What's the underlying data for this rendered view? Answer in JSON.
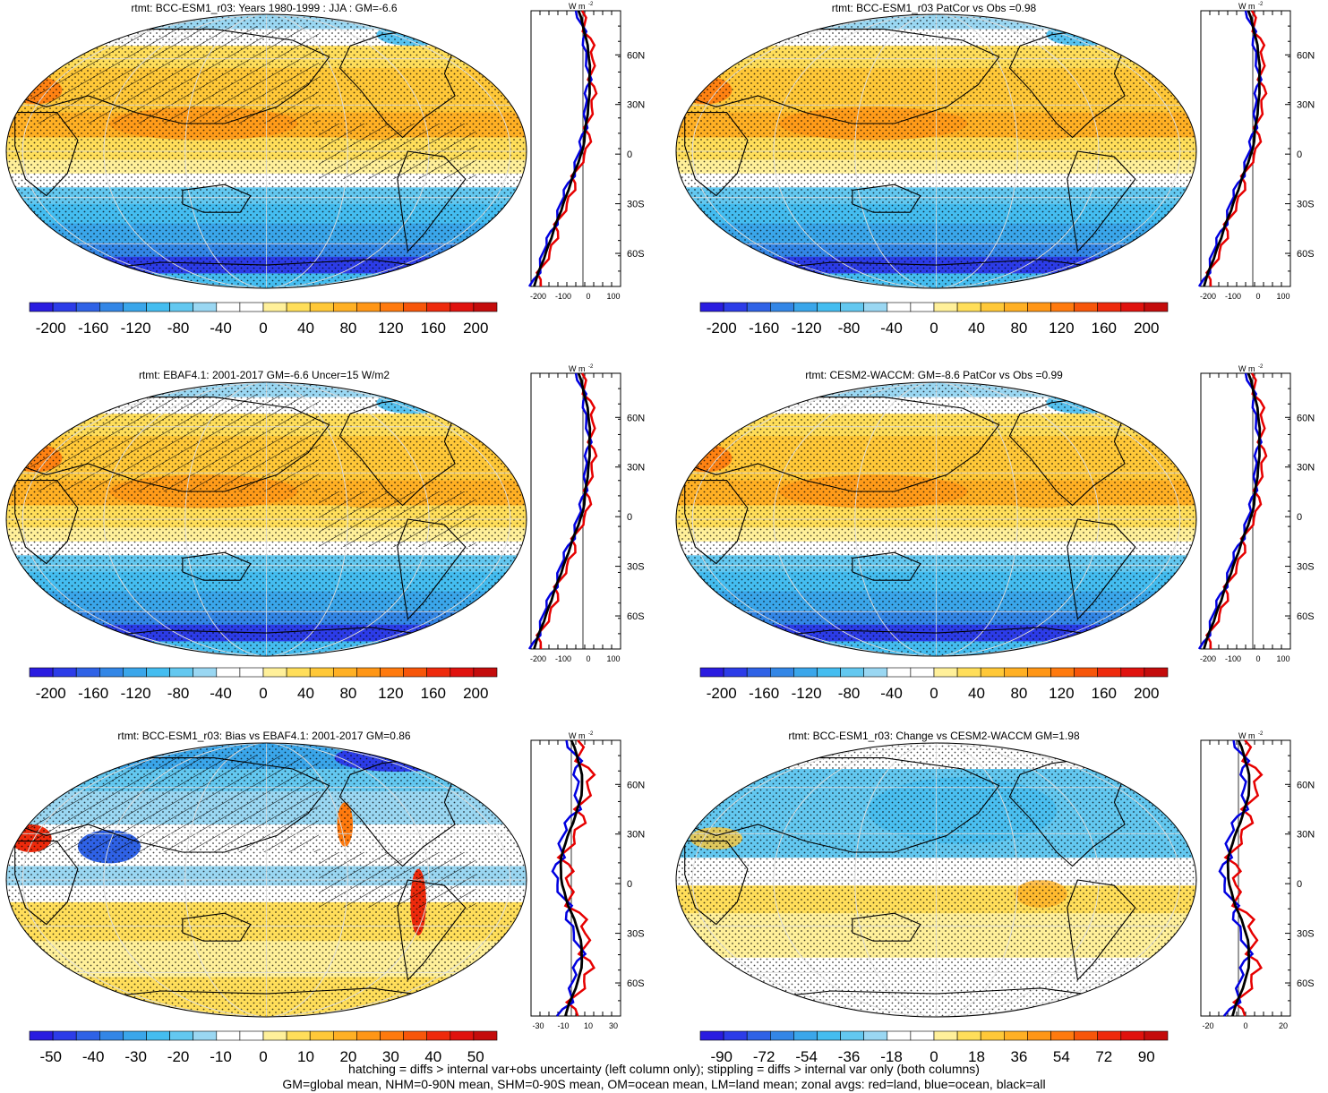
{
  "panels": [
    {
      "title": "rtmt: BCC-ESM1_r03: Years 1980-1999 : JJA : GM=-6.6",
      "type": "mean",
      "hatch": true
    },
    {
      "title": "rtmt: BCC-ESM1_r03 PatCor vs Obs =0.98",
      "type": "mean",
      "hatch": false
    },
    {
      "title": "rtmt: EBAF4.1: 2001-2017 GM=-6.6 Uncer=15 W/m2",
      "type": "mean",
      "hatch": true
    },
    {
      "title": "rtmt: CESM2-WACCM: GM=-8.6 PatCor vs Obs =0.99",
      "type": "mean",
      "hatch": false
    },
    {
      "title": "rtmt: BCC-ESM1_r03: Bias vs EBAF4.1: 2001-2017 GM=0.86",
      "type": "bias",
      "hatch": true
    },
    {
      "title": "rtmt: BCC-ESM1_r03: Change vs CESM2-WACCM GM=1.98",
      "type": "change",
      "hatch": false
    }
  ],
  "colorbars": {
    "mean": [
      "-200",
      "-160",
      "-120",
      "-80",
      "-40",
      "0",
      "40",
      "80",
      "120",
      "160",
      "200"
    ],
    "bias": [
      "-50",
      "-40",
      "-30",
      "-20",
      "-10",
      "0",
      "10",
      "20",
      "30",
      "40",
      "50"
    ],
    "change": [
      "-90",
      "-72",
      "-54",
      "-36",
      "-18",
      "0",
      "18",
      "36",
      "54",
      "72",
      "90"
    ]
  },
  "zonal_axes": {
    "unit_label": "W m",
    "unit_exp": "-2",
    "lat_labels": [
      "60N",
      "30N",
      "0",
      "30S",
      "60S"
    ],
    "x_mean": [
      "-200",
      "-100",
      "0",
      "100"
    ],
    "x_bias": [
      "-30",
      "-10",
      "10",
      "30"
    ],
    "x_change": [
      "-20",
      "0",
      "20"
    ]
  },
  "footnote": {
    "line1": "hatching = diffs > internal var+obs uncertainty (left column only); stippling = diffs > internal var only (both columns)",
    "line2": "GM=global mean, NHM=0-90N mean, SHM=0-90S mean, OM=ocean mean, LM=land mean; zonal avgs: red=land, blue=ocean, black=all"
  },
  "colors": {
    "palette": [
      "#2a1ce0",
      "#2c3ce8",
      "#2f62e6",
      "#3386e6",
      "#3aa6ea",
      "#44bdf0",
      "#63c8f0",
      "#9ad7f2",
      "#ffffff",
      "#ffffff",
      "#fff09a",
      "#ffde5a",
      "#ffc838",
      "#ffb024",
      "#ff9616",
      "#ff7a0e",
      "#f7560a",
      "#ee2a0c",
      "#e0120e",
      "#c40c0c"
    ],
    "land_line": "#e60000",
    "ocean_line": "#0000e0",
    "all_line": "#000000"
  }
}
